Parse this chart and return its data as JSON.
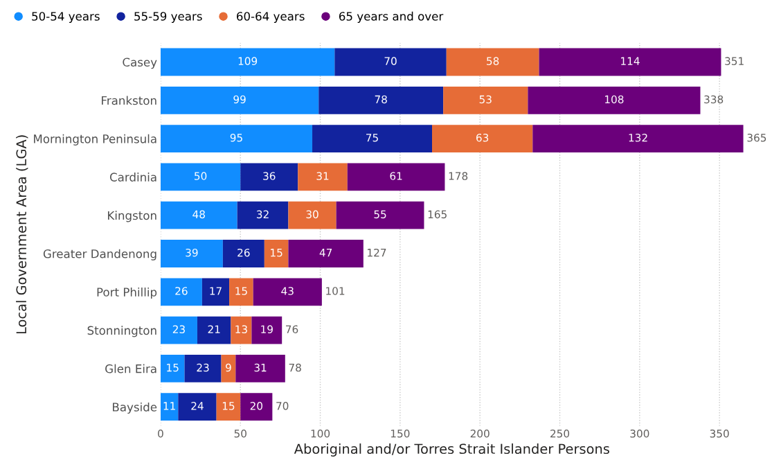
{
  "chart_data": {
    "type": "bar",
    "orientation": "horizontal",
    "stacked": true,
    "xlabel": "Aboriginal and/or Torres Strait Islander Persons",
    "ylabel": "Local Government Area (LGA)",
    "categories": [
      "Casey",
      "Frankston",
      "Mornington Peninsula",
      "Cardinia",
      "Kingston",
      "Greater Dandenong",
      "Port Phillip",
      "Stonnington",
      "Glen Eira",
      "Bayside"
    ],
    "series": [
      {
        "name": "50-54 years",
        "color": "#118dff",
        "values": [
          109,
          99,
          95,
          50,
          48,
          39,
          26,
          23,
          15,
          11
        ]
      },
      {
        "name": "55-59 years",
        "color": "#12239e",
        "values": [
          70,
          78,
          75,
          36,
          32,
          26,
          17,
          21,
          23,
          24
        ]
      },
      {
        "name": "60-64 years",
        "color": "#e66c37",
        "values": [
          58,
          53,
          63,
          31,
          30,
          15,
          15,
          13,
          9,
          15
        ]
      },
      {
        "name": "65 years and over",
        "color": "#6b007b",
        "values": [
          114,
          108,
          132,
          61,
          55,
          47,
          43,
          19,
          31,
          20
        ]
      }
    ],
    "totals": [
      "351",
      "338",
      "365",
      "178",
      "165",
      "127",
      "101",
      "76",
      "78",
      "70"
    ],
    "data_labels": true,
    "xlim": [
      0,
      365
    ],
    "xticks": [
      0,
      50,
      100,
      150,
      200,
      250,
      300,
      350
    ],
    "grid": "x",
    "legend": "top left",
    "marker": "circle"
  }
}
